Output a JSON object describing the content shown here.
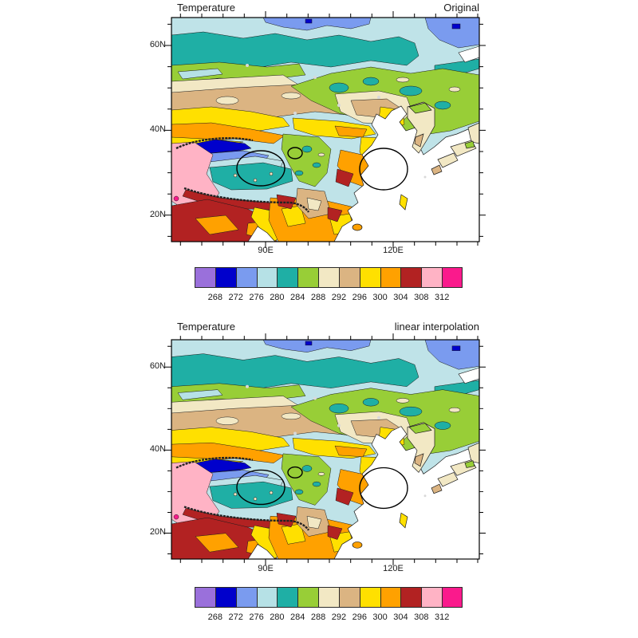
{
  "page": {
    "background": "#ffffff"
  },
  "panels": [
    {
      "title_left": "Temperature",
      "title_right": "Original"
    },
    {
      "title_left": "Temperature",
      "title_right": "linear interpolation"
    }
  ],
  "axes": {
    "lat_labels": [
      "60N",
      "40N",
      "20N"
    ],
    "lon_labels": [
      "90E",
      "120E"
    ]
  },
  "colorbar": {
    "labels": [
      "268",
      "272",
      "276",
      "280",
      "284",
      "288",
      "292",
      "296",
      "300",
      "304",
      "308",
      "312"
    ],
    "colors": [
      "#9A70DB",
      "#0000CC",
      "#7A9BEF",
      "#B6E1E6",
      "#1FAFA5",
      "#98CE37",
      "#F2E8C4",
      "#DBB482",
      "#FFE000",
      "#FFA100",
      "#B22222",
      "#FFB3C5",
      "#FA1A8C"
    ]
  },
  "chart_data": [
    {
      "type": "heatmap",
      "subtype": "filled_contour_map",
      "title": "Temperature",
      "panel_label": "Original",
      "region": "East Asia / China",
      "x_tick_labels": [
        "90E",
        "120E"
      ],
      "y_tick_labels": [
        "20N",
        "40N",
        "60N"
      ],
      "lon_range_est": [
        68,
        140
      ],
      "lat_range_est": [
        14,
        66
      ],
      "contour_levels": [
        268,
        272,
        276,
        280,
        284,
        288,
        292,
        296,
        300,
        304,
        308,
        312
      ],
      "fill_colors": [
        "#9A70DB",
        "#0000CC",
        "#7A9BEF",
        "#B6E1E6",
        "#1FAFA5",
        "#98CE37",
        "#F2E8C4",
        "#DBB482",
        "#FFE000",
        "#FFA100",
        "#B22222",
        "#FFB3C5",
        "#FA1A8C"
      ],
      "legend_position": "bottom",
      "grid": false,
      "notable_features": [
        "cold pool (268-284) over Tibetan Plateau outlined with black ellipse",
        "small black ellipse annotation northeast of plateau ellipse",
        "warm region (296-304) over Southeast China outlined with black ellipse",
        "hot region (304-312) over India / Indochina, pink 308-312 in northwest India",
        "cool bands (272-284) across Siberia in the north",
        "ocean areas masked white with coastlines of Korea, Japan, Taiwan, Hainan"
      ]
    },
    {
      "type": "heatmap",
      "subtype": "filled_contour_map",
      "title": "Temperature",
      "panel_label": "linear interpolation",
      "region": "East Asia / China",
      "x_tick_labels": [
        "90E",
        "120E"
      ],
      "y_tick_labels": [
        "20N",
        "40N",
        "60N"
      ],
      "lon_range_est": [
        68,
        140
      ],
      "lat_range_est": [
        14,
        66
      ],
      "contour_levels": [
        268,
        272,
        276,
        280,
        284,
        288,
        292,
        296,
        300,
        304,
        308,
        312
      ],
      "fill_colors": [
        "#9A70DB",
        "#0000CC",
        "#7A9BEF",
        "#B6E1E6",
        "#1FAFA5",
        "#98CE37",
        "#F2E8C4",
        "#DBB482",
        "#FFE000",
        "#FFA100",
        "#B22222",
        "#FFB3C5",
        "#FA1A8C"
      ],
      "legend_position": "bottom",
      "grid": false,
      "notable_features": [
        "near-identical field to Original panel, produced by linear interpolation",
        "same two black ellipse annotations over Tibetan Plateau and Southeast China"
      ]
    }
  ]
}
